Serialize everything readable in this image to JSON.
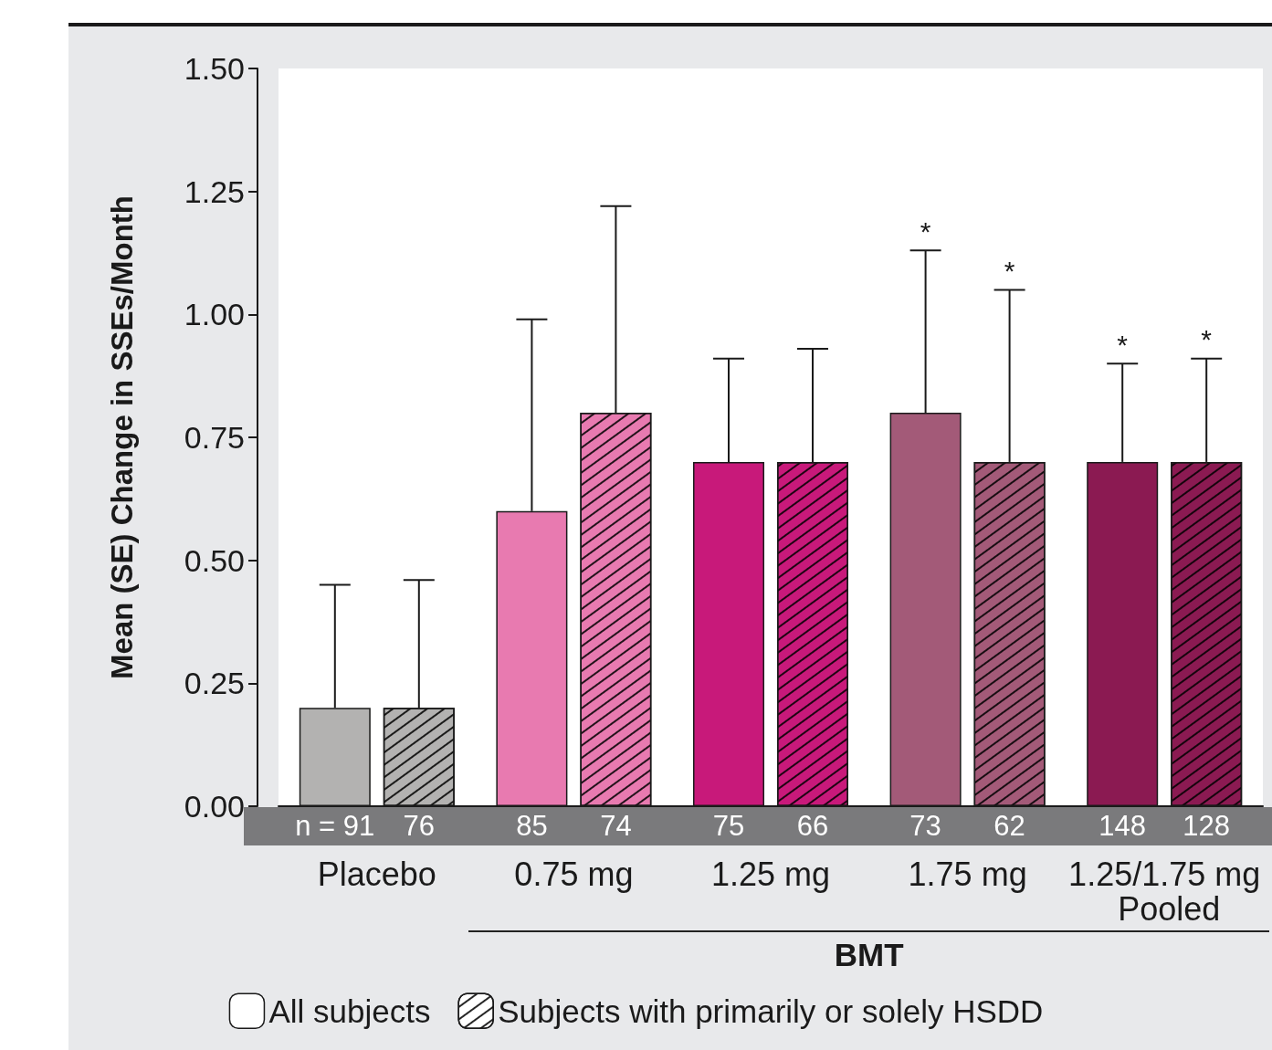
{
  "chart_data": {
    "type": "bar",
    "ylabel": "Mean (SE) Change in SSEs/Month",
    "categories": [
      "Placebo",
      "0.75 mg",
      "1.25 mg",
      "1.75 mg",
      "1.25/1.75 mg Pooled"
    ],
    "series": [
      {
        "name": "All subjects",
        "colors": [
          "#b3b2b1",
          "#e87ab0",
          "#c8197a",
          "#a35a78",
          "#8b1a52"
        ],
        "values": [
          0.2,
          0.6,
          0.7,
          0.8,
          0.7
        ],
        "errors": [
          [
            0.2,
            0.45
          ],
          [
            0.6,
            0.99
          ],
          [
            0.7,
            0.91
          ],
          [
            0.8,
            1.13
          ],
          [
            0.7,
            0.9
          ]
        ]
      },
      {
        "name": "Subjects with primarily or solely HSDD",
        "colors": [
          "#b3b2b1",
          "#e87ab0",
          "#c8197a",
          "#a35a78",
          "#8b1a52"
        ],
        "values": [
          0.2,
          0.8,
          0.7,
          0.7,
          0.7
        ],
        "errors": [
          [
            0.2,
            0.46
          ],
          [
            0.8,
            1.22
          ],
          [
            0.7,
            0.93
          ],
          [
            0.7,
            1.05
          ],
          [
            0.7,
            0.91
          ]
        ]
      }
    ],
    "ylim": [
      0,
      1.5
    ],
    "yticks": [
      {
        "value": 0,
        "label": "0.00"
      },
      {
        "value": 0.25,
        "label": "0.25"
      },
      {
        "value": 0.5,
        "label": "0.50"
      },
      {
        "value": 0.75,
        "label": "0.75"
      },
      {
        "value": 1,
        "label": "1.00"
      },
      {
        "value": 1.25,
        "label": "1.25"
      },
      {
        "value": 1.5,
        "label": "1.50"
      }
    ],
    "grid": false,
    "legend": "bottom",
    "annotations": [
      "n = 91",
      "76",
      "85",
      "74",
      "75",
      "66",
      "73",
      "62",
      "148",
      "128",
      "*",
      "*",
      "*",
      "*",
      "BMT"
    ]
  }
}
